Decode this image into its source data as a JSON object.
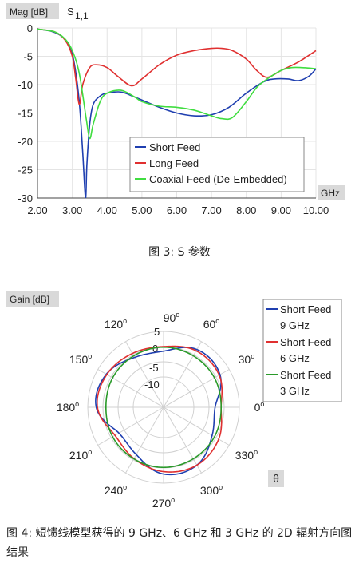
{
  "chart_data": [
    {
      "type": "line",
      "ylabel": "Mag [dB]",
      "title": "S",
      "title_sub": "1,1",
      "xlabel": "GHz",
      "xlim": [
        2.0,
        10.0
      ],
      "ylim": [
        -30,
        0
      ],
      "xticks": [
        "2.00",
        "3.00",
        "4.00",
        "5.00",
        "6.00",
        "7.00",
        "8.00",
        "9.00",
        "10.00"
      ],
      "yticks": [
        "0",
        "-5",
        "-10",
        "-15",
        "-20",
        "-25",
        "-30"
      ],
      "legend_position": "bottom-center",
      "series": [
        {
          "name": "Short Feed",
          "color": "#1f3fb0",
          "x": [
            2.0,
            2.4,
            2.7,
            2.9,
            3.05,
            3.2,
            3.3,
            3.38,
            3.42,
            3.5,
            3.6,
            3.8,
            4.0,
            4.4,
            4.8,
            5.5,
            6.0,
            6.5,
            7.0,
            7.5,
            8.0,
            8.5,
            8.8,
            9.2,
            9.5,
            9.8,
            10.0
          ],
          "y": [
            -0.2,
            -0.6,
            -1.5,
            -3,
            -6,
            -13,
            -22,
            -30,
            -24,
            -17,
            -13.5,
            -12,
            -11.5,
            -11.3,
            -12.2,
            -14,
            -15,
            -15.5,
            -15.3,
            -14,
            -11.5,
            -9.5,
            -9,
            -9,
            -9.3,
            -8.5,
            -7.2
          ]
        },
        {
          "name": "Long Feed",
          "color": "#e03030",
          "x": [
            2.0,
            2.5,
            2.8,
            3.0,
            3.1,
            3.2,
            3.3,
            3.5,
            3.7,
            4.0,
            4.3,
            4.7,
            5.0,
            5.5,
            6.0,
            6.5,
            7.0,
            7.3,
            7.6,
            8.0,
            8.3,
            8.6,
            9.0,
            9.5,
            10.0
          ],
          "y": [
            -0.2,
            -0.7,
            -2.2,
            -5,
            -9,
            -13.5,
            -10,
            -7,
            -6.5,
            -7,
            -8.5,
            -10.2,
            -9,
            -6.5,
            -4.8,
            -4,
            -3.6,
            -3.6,
            -4,
            -5.5,
            -7.5,
            -8.7,
            -7.5,
            -6,
            -4
          ]
        },
        {
          "name": "Coaxial Feed (De-Embedded)",
          "color": "#40dd40",
          "x": [
            2.0,
            2.5,
            2.8,
            3.0,
            3.2,
            3.4,
            3.5,
            3.6,
            3.8,
            4.0,
            4.4,
            4.8,
            5.0,
            5.5,
            6.0,
            6.5,
            7.0,
            7.3,
            7.6,
            8.0,
            8.3,
            8.6,
            9.0,
            9.3,
            9.6,
            10.0
          ],
          "y": [
            -0.2,
            -0.7,
            -2,
            -4,
            -8,
            -16,
            -19.5,
            -17,
            -13,
            -11.5,
            -11,
            -12.2,
            -13,
            -13.8,
            -14,
            -14.5,
            -15.5,
            -16,
            -15.8,
            -13,
            -10.5,
            -9,
            -7.5,
            -7,
            -7,
            -7.2
          ]
        }
      ]
    },
    {
      "type": "polar",
      "ylabel": "Gain [dB]",
      "radial_ticks": [
        "5",
        "0",
        "-5",
        "-10"
      ],
      "rlim": [
        -20,
        5
      ],
      "angle_ticks": [
        {
          "deg": 0,
          "label": "0"
        },
        {
          "deg": 30,
          "label": "30"
        },
        {
          "deg": 60,
          "label": "60"
        },
        {
          "deg": 90,
          "label": "90"
        },
        {
          "deg": 120,
          "label": "120"
        },
        {
          "deg": 150,
          "label": "150"
        },
        {
          "deg": 180,
          "label": "180"
        },
        {
          "deg": 210,
          "label": "210"
        },
        {
          "deg": 240,
          "label": "240"
        },
        {
          "deg": 270,
          "label": "270"
        },
        {
          "deg": 300,
          "label": "300"
        },
        {
          "deg": 330,
          "label": "330"
        }
      ],
      "degree_mark": "o",
      "theta_label": "θ",
      "legend_position": "right",
      "series": [
        {
          "name": "Short Feed",
          "subtitle": "9 GHz",
          "color": "#1f3fb0",
          "values": [
            -3,
            1.5,
            2,
            -1.5,
            -1,
            1.8,
            2.2,
            -3,
            -2,
            2,
            2,
            -1.5,
            -3
          ]
        },
        {
          "name": "Short Feed",
          "subtitle": "6 GHz",
          "color": "#e03030",
          "values": [
            -1,
            1.2,
            1.5,
            0,
            0.5,
            1.6,
            1.8,
            -1.5,
            -0.5,
            1.2,
            2,
            1,
            -1
          ]
        },
        {
          "name": "Short Feed",
          "subtitle": "3 GHz",
          "color": "#2a9a2a",
          "values": [
            -1,
            -0.6,
            -0.4,
            -0.2,
            -0.4,
            -0.6,
            -1,
            -0.6,
            -0.4,
            -0.2,
            -0.4,
            -0.6,
            -1
          ]
        }
      ]
    }
  ],
  "captions": {
    "fig3": "图 3: S 参数",
    "fig4": "图 4: 短馈线模型获得的 9 GHz、6 GHz 和 3 GHz 的 2D 辐射方向图结果"
  }
}
